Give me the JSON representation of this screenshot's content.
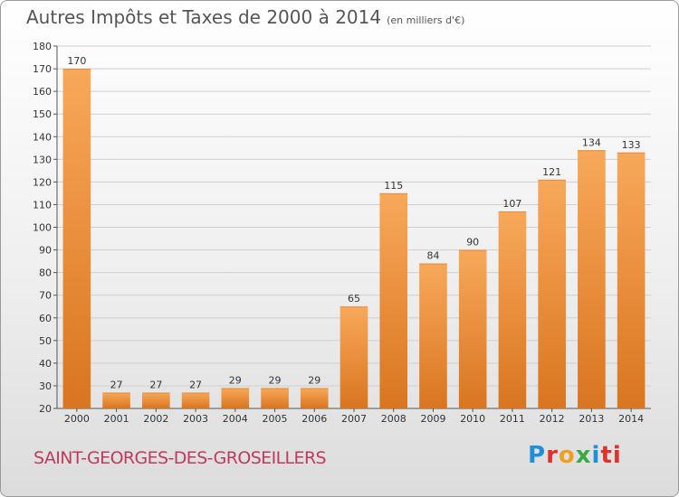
{
  "header": {
    "title": "Autres Impôts et Taxes de 2000 à 2014",
    "subtitle": "(en milliers d'€)"
  },
  "footer": {
    "commune": "SAINT-GEORGES-DES-GROSEILLERS",
    "logo": [
      "P",
      "r",
      "o",
      "x",
      "i",
      "ti"
    ]
  },
  "colors": {
    "bar_light": "#f8a85a",
    "bar_dark": "#d9751f",
    "grid": "#cfcfcf",
    "commune": "#c03a5e"
  },
  "chart_data": {
    "type": "bar",
    "categories": [
      "2000",
      "2001",
      "2002",
      "2003",
      "2004",
      "2005",
      "2006",
      "2007",
      "2008",
      "2009",
      "2010",
      "2011",
      "2012",
      "2013",
      "2014"
    ],
    "values": [
      170,
      27,
      27,
      27,
      29,
      29,
      29,
      65,
      115,
      84,
      90,
      107,
      121,
      134,
      133
    ],
    "ylim": [
      20,
      180
    ],
    "yticks": [
      20,
      30,
      40,
      50,
      60,
      70,
      80,
      90,
      100,
      110,
      120,
      130,
      140,
      150,
      160,
      170,
      180
    ],
    "grid": true,
    "data_labels": true
  }
}
